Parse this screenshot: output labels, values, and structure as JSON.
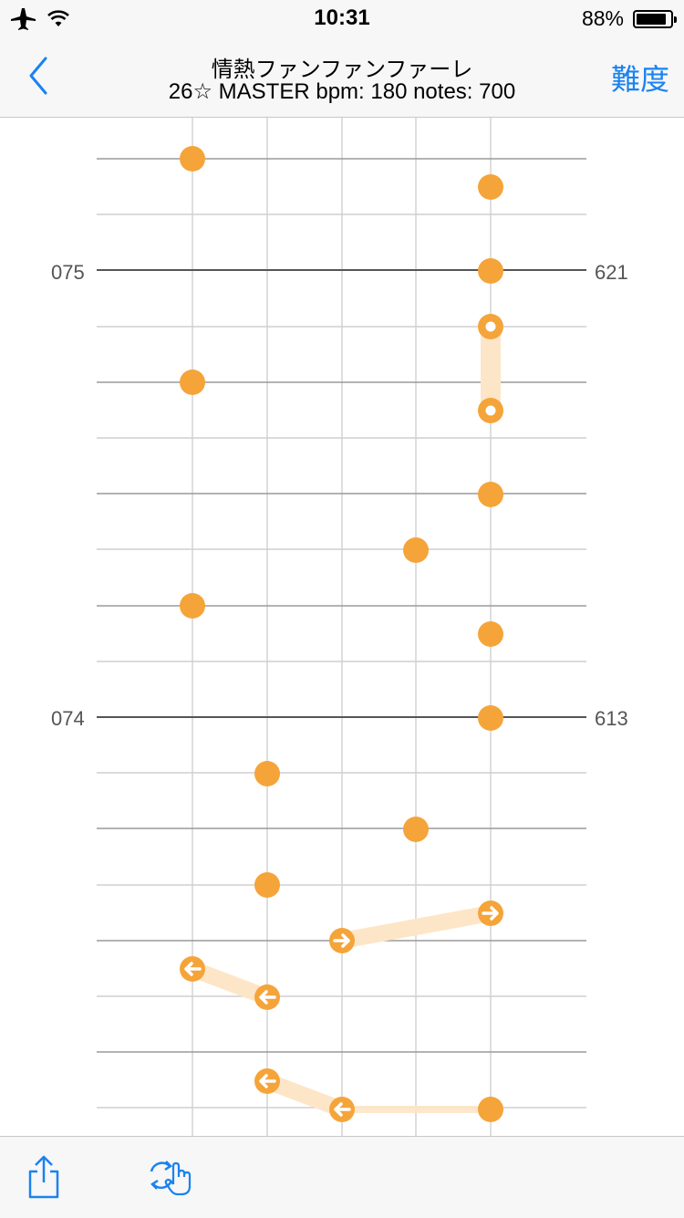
{
  "status": {
    "time": "10:31",
    "battery": "88%",
    "battery_level": 0.88,
    "airplane_icon": "airplane-icon",
    "wifi_icon": "wifi-icon"
  },
  "nav": {
    "title_line1": "情熱ファンファンファーレ",
    "title_line2": "26☆ MASTER bpm: 180 notes: 700",
    "right_label": "難度"
  },
  "measures": [
    {
      "label": "075",
      "note_count": "621"
    },
    {
      "label": "074",
      "note_count": "613"
    }
  ],
  "toolbar": {
    "share_icon": "share-icon",
    "rotate_hand_icon": "rotate-hand-icon"
  },
  "colors": {
    "accent": "#1a82f0",
    "note": "#f5a43a",
    "hold": "#fde6c8"
  }
}
